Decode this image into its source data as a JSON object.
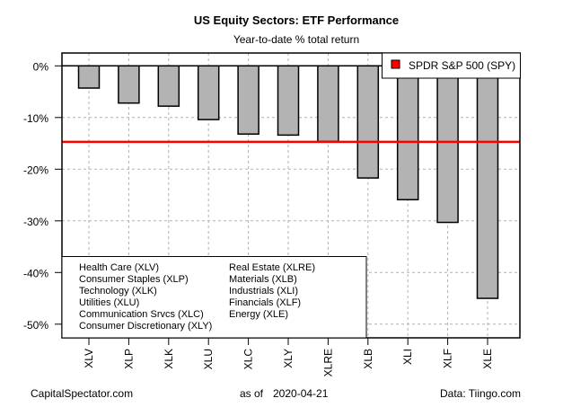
{
  "chart_data": {
    "type": "bar",
    "title": "US Equity Sectors: ETF Performance",
    "subtitle": "Year-to-date % total return",
    "xlabel": "",
    "ylabel": "",
    "categories": [
      "XLV",
      "XLP",
      "XLK",
      "XLU",
      "XLC",
      "XLY",
      "XLRE",
      "XLB",
      "XLI",
      "XLF",
      "XLE"
    ],
    "values": [
      -4.3,
      -7.2,
      -7.8,
      -10.4,
      -13.2,
      -13.4,
      -14.6,
      -21.7,
      -25.9,
      -30.3,
      -45.0
    ],
    "ylim": [
      -52.5,
      2.5
    ],
    "yticks": [
      0,
      -10,
      -20,
      -30,
      -40,
      -50
    ],
    "ytick_labels": [
      "0%",
      "-10%",
      "-20%",
      "-30%",
      "-40%",
      "-50%"
    ],
    "grid": true,
    "bar_color": "#b3b3b3",
    "reference_line": {
      "label": "SPDR S&P 500 (SPY)",
      "value": -14.7,
      "color": "#ff0000"
    },
    "reference_legend_position": "top-right",
    "sector_legend_position": "bottom-left",
    "sector_legend": {
      "left_column": [
        "Health Care (XLV)",
        "Consumer Staples (XLP)",
        "Technology (XLK)",
        "Utilities (XLU)",
        "Communication Srvcs (XLC)",
        "Consumer Discretionary (XLY)"
      ],
      "right_column": [
        "Real Estate (XLRE)",
        "Materials (XLB)",
        "Industrials (XLI)",
        "Financials (XLF)",
        "Energy (XLE)"
      ]
    }
  },
  "footer": {
    "source_left": "CapitalSpectator.com",
    "as_of_label": "as of",
    "as_of_date": "2020-04-21",
    "data_source": "Data: Tiingo.com"
  }
}
